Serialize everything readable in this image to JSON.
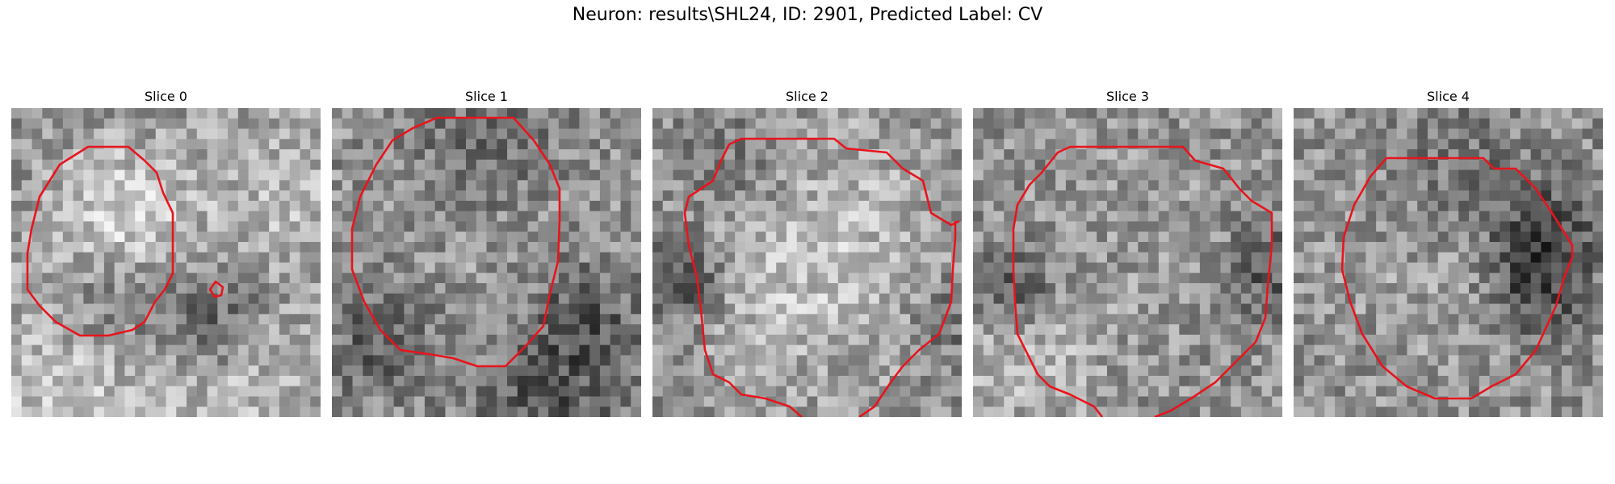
{
  "figure": {
    "title": "Neuron: results\\SHL24, ID: 2901, Predicted Label: CV"
  },
  "panels": [
    {
      "title": "Slice 0"
    },
    {
      "title": "Slice 1"
    },
    {
      "title": "Slice 2"
    },
    {
      "title": "Slice 3"
    },
    {
      "title": "Slice 4"
    }
  ],
  "style": {
    "contour_color": "#e8141c"
  }
}
